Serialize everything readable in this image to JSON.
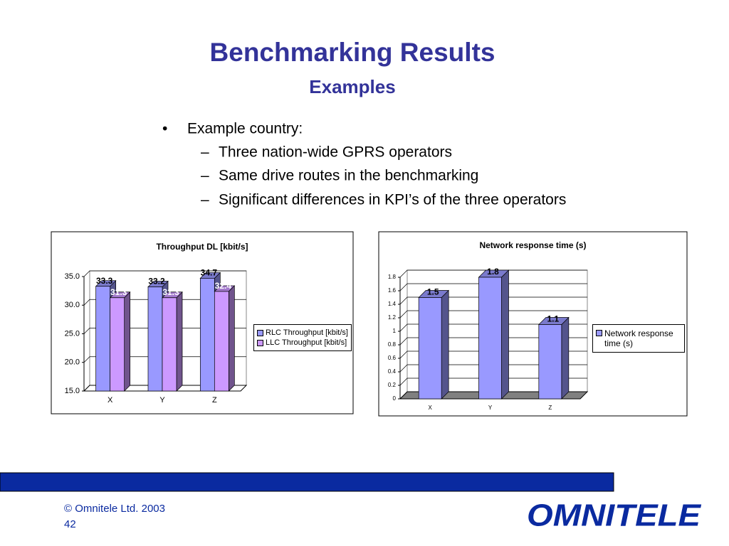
{
  "title": "Benchmarking Results",
  "subtitle": "Examples",
  "bullets": {
    "main": "Example country:",
    "sub": [
      "Three nation-wide GPRS operators",
      "Same drive routes in the benchmarking",
      "Significant differences in KPI’s of the three operators"
    ]
  },
  "chart_data": [
    {
      "type": "bar",
      "title": "Throughput DL [kbit/s]",
      "categories": [
        "X",
        "Y",
        "Z"
      ],
      "series": [
        {
          "name": "RLC Throughput [kbit/s]",
          "color": "#9999ff",
          "values": [
            33.3,
            33.2,
            34.7
          ]
        },
        {
          "name": "LLC Throughput [kbit/s]",
          "color": "#cc99ff",
          "values": [
            31.3,
            31.3,
            32.4
          ]
        }
      ],
      "ylim": [
        15,
        35
      ],
      "yticks": [
        {
          "value": 15,
          "label": "15.0"
        },
        {
          "value": 20,
          "label": "20.0"
        },
        {
          "value": 25,
          "label": "25.0"
        },
        {
          "value": 30,
          "label": "30.0"
        },
        {
          "value": 35,
          "label": "35.0"
        }
      ],
      "grid": true,
      "legend": "right"
    },
    {
      "type": "bar",
      "title": "Network response time (s)",
      "categories": [
        "X",
        "Y",
        "Z"
      ],
      "series": [
        {
          "name": "Network response time (s)",
          "color": "#9999ff",
          "values": [
            1.5,
            1.8,
            1.1
          ]
        }
      ],
      "ylim": [
        0,
        1.8
      ],
      "yticks": [
        0,
        0.2,
        0.4,
        0.6,
        0.8,
        1,
        1.2,
        1.4,
        1.6,
        1.8
      ],
      "grid": true,
      "legend": "right"
    }
  ],
  "footer": {
    "copyright": "© Omnitele Ltd. 2003",
    "page": "42"
  },
  "logo": "OMNITELE"
}
